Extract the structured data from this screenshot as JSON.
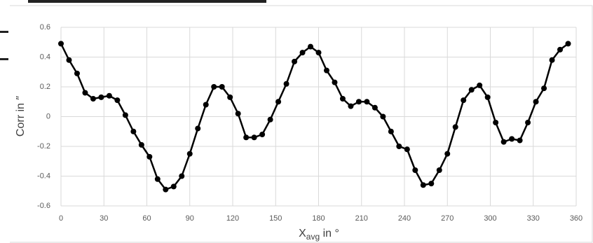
{
  "chart_data": {
    "type": "line",
    "x_label": {
      "main": "X",
      "sub": "avg",
      "rest": " in °"
    },
    "y_label": "Corr in ″",
    "x": [
      0,
      5.625,
      11.25,
      16.875,
      22.5,
      28.125,
      33.75,
      39.375,
      45,
      50.625,
      56.25,
      61.875,
      67.5,
      73.125,
      78.75,
      84.375,
      90,
      95.625,
      101.25,
      106.875,
      112.5,
      118.125,
      123.75,
      129.375,
      135,
      140.625,
      146.25,
      151.875,
      157.5,
      163.125,
      168.75,
      174.375,
      180,
      185.625,
      191.25,
      196.875,
      202.5,
      208.125,
      213.75,
      219.375,
      225,
      230.625,
      236.25,
      241.875,
      247.5,
      253.125,
      258.75,
      264.375,
      270,
      275.625,
      281.25,
      286.875,
      292.5,
      298.125,
      303.75,
      309.375,
      315,
      320.625,
      326.25,
      331.875,
      337.5,
      343.125,
      348.75,
      354.375
    ],
    "series": [
      {
        "color": "#000000",
        "values": [
          0.49,
          0.38,
          0.29,
          0.16,
          0.12,
          0.13,
          0.14,
          0.11,
          0.01,
          -0.1,
          -0.19,
          -0.27,
          -0.42,
          -0.49,
          -0.47,
          -0.4,
          -0.25,
          -0.08,
          0.08,
          0.2,
          0.2,
          0.13,
          0.02,
          -0.14,
          -0.14,
          -0.12,
          -0.02,
          0.1,
          0.22,
          0.37,
          0.43,
          0.47,
          0.43,
          0.31,
          0.23,
          0.12,
          0.07,
          0.1,
          0.1,
          0.06,
          0.0,
          -0.1,
          -0.2,
          -0.22,
          -0.36,
          -0.46,
          -0.45,
          -0.36,
          -0.25,
          -0.07,
          0.11,
          0.18,
          0.21,
          0.13,
          -0.04,
          -0.17,
          -0.15,
          -0.16,
          -0.04,
          0.1,
          0.19,
          0.38,
          0.45,
          0.49
        ]
      }
    ],
    "xlim": [
      0,
      360
    ],
    "xticks": [
      0,
      30,
      60,
      90,
      120,
      150,
      180,
      210,
      240,
      270,
      300,
      330,
      360
    ],
    "ylim": [
      -0.6,
      0.6
    ],
    "yticks": [
      -0.6,
      -0.4,
      -0.2,
      0,
      0.2,
      0.4,
      0.6
    ],
    "grid": true
  }
}
